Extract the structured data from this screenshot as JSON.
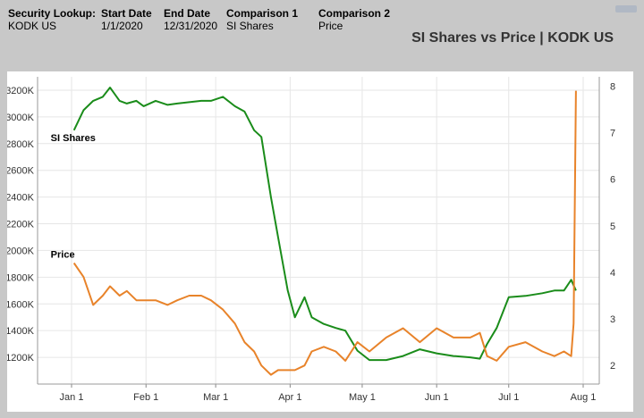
{
  "header": {
    "security_lookup_label": "Security Lookup:",
    "security_lookup_value": "KODK US",
    "start_date_label": "Start Date",
    "start_date_value": "1/1/2020",
    "end_date_label": "End Date",
    "end_date_value": "12/31/2020",
    "comparison1_label": "Comparison 1",
    "comparison1_value": "SI Shares",
    "comparison2_label": "Comparison 2",
    "comparison2_value": "Price"
  },
  "colors": {
    "si_shares": "#1a8c1a",
    "price": "#e8832a",
    "background": "#c8c8c8",
    "panel": "#ffffff",
    "grid": "#e6e6e6"
  },
  "chart_data": {
    "type": "line",
    "title": "SI Shares vs Price | KODK US",
    "x_ticks": [
      "Jan 1",
      "Feb 1",
      "Mar 1",
      "Apr 1",
      "May 1",
      "Jun 1",
      "Jul 1",
      "Aug 1"
    ],
    "y_left_ticks": [
      "1200K",
      "1400K",
      "1600K",
      "1800K",
      "2000K",
      "2200K",
      "2400K",
      "2600K",
      "2800K",
      "3000K",
      "3200K"
    ],
    "y_left_lim": [
      1000,
      3300
    ],
    "y_left_unit": "K",
    "y_right_ticks": [
      "2",
      "3",
      "4",
      "5",
      "6",
      "7",
      "8"
    ],
    "y_right_lim": [
      1.6,
      8.2
    ],
    "grid": true,
    "series": [
      {
        "name": "SI Shares",
        "axis": "left",
        "x": [
          "2020-01-02",
          "2020-01-06",
          "2020-01-10",
          "2020-01-14",
          "2020-01-17",
          "2020-01-21",
          "2020-01-24",
          "2020-01-28",
          "2020-01-31",
          "2020-02-05",
          "2020-02-10",
          "2020-02-14",
          "2020-02-19",
          "2020-02-24",
          "2020-02-28",
          "2020-03-04",
          "2020-03-09",
          "2020-03-13",
          "2020-03-17",
          "2020-03-20",
          "2020-03-24",
          "2020-03-27",
          "2020-03-31",
          "2020-04-03",
          "2020-04-07",
          "2020-04-10",
          "2020-04-15",
          "2020-04-20",
          "2020-04-24",
          "2020-04-29",
          "2020-05-04",
          "2020-05-11",
          "2020-05-18",
          "2020-05-25",
          "2020-06-01",
          "2020-06-08",
          "2020-06-15",
          "2020-06-19",
          "2020-06-22",
          "2020-06-26",
          "2020-07-01",
          "2020-07-08",
          "2020-07-15",
          "2020-07-20",
          "2020-07-24",
          "2020-07-27",
          "2020-07-29"
        ],
        "values": [
          2900,
          3050,
          3120,
          3150,
          3220,
          3120,
          3100,
          3120,
          3080,
          3120,
          3090,
          3100,
          3110,
          3120,
          3120,
          3150,
          3080,
          3040,
          2900,
          2850,
          2400,
          2100,
          1700,
          1500,
          1650,
          1500,
          1450,
          1420,
          1400,
          1250,
          1180,
          1180,
          1210,
          1260,
          1230,
          1210,
          1200,
          1190,
          1300,
          1420,
          1650,
          1660,
          1680,
          1700,
          1700,
          1780,
          1700
        ],
        "label": "SI Shares"
      },
      {
        "name": "Price",
        "axis": "right",
        "x": [
          "2020-01-02",
          "2020-01-06",
          "2020-01-10",
          "2020-01-14",
          "2020-01-17",
          "2020-01-21",
          "2020-01-24",
          "2020-01-28",
          "2020-01-31",
          "2020-02-05",
          "2020-02-10",
          "2020-02-14",
          "2020-02-19",
          "2020-02-24",
          "2020-02-28",
          "2020-03-04",
          "2020-03-09",
          "2020-03-13",
          "2020-03-17",
          "2020-03-20",
          "2020-03-24",
          "2020-03-27",
          "2020-03-31",
          "2020-04-03",
          "2020-04-07",
          "2020-04-10",
          "2020-04-15",
          "2020-04-20",
          "2020-04-24",
          "2020-04-29",
          "2020-05-04",
          "2020-05-11",
          "2020-05-18",
          "2020-05-25",
          "2020-06-01",
          "2020-06-08",
          "2020-06-15",
          "2020-06-19",
          "2020-06-22",
          "2020-06-26",
          "2020-07-01",
          "2020-07-08",
          "2020-07-15",
          "2020-07-20",
          "2020-07-24",
          "2020-07-27",
          "2020-07-28",
          "2020-07-29"
        ],
        "values": [
          4.2,
          3.9,
          3.3,
          3.5,
          3.7,
          3.5,
          3.6,
          3.4,
          3.4,
          3.4,
          3.3,
          3.4,
          3.5,
          3.5,
          3.4,
          3.2,
          2.9,
          2.5,
          2.3,
          2.0,
          1.8,
          1.9,
          1.9,
          1.9,
          2.0,
          2.3,
          2.4,
          2.3,
          2.1,
          2.5,
          2.3,
          2.6,
          2.8,
          2.5,
          2.8,
          2.6,
          2.6,
          2.7,
          2.2,
          2.1,
          2.4,
          2.5,
          2.3,
          2.2,
          2.3,
          2.2,
          2.9,
          7.9
        ],
        "label": "Price"
      }
    ]
  }
}
